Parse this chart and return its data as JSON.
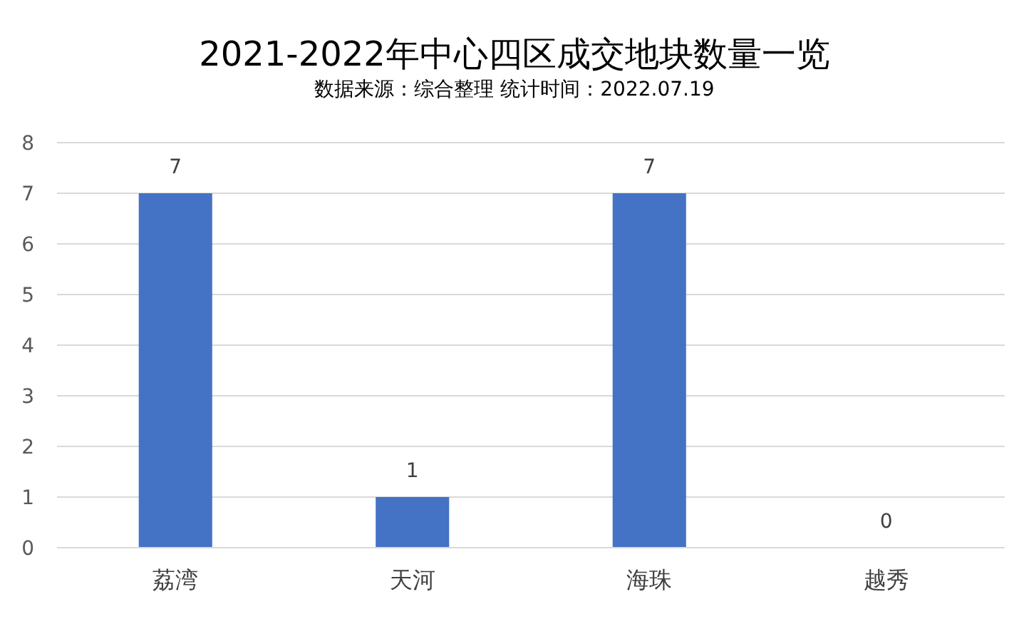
{
  "chart_data": {
    "type": "bar",
    "title": "2021-2022年中心四区成交地块数量一览",
    "subtitle": "数据来源：综合整理 统计时间：2022.07.19",
    "categories": [
      "荔湾",
      "天河",
      "海珠",
      "越秀"
    ],
    "values": [
      7,
      1,
      7,
      0
    ],
    "color": "#4472c4",
    "ylim": [
      0,
      8
    ],
    "yticks": [
      0,
      1,
      2,
      3,
      4,
      5,
      6,
      7,
      8
    ],
    "grid": "y",
    "data_labels": true
  }
}
